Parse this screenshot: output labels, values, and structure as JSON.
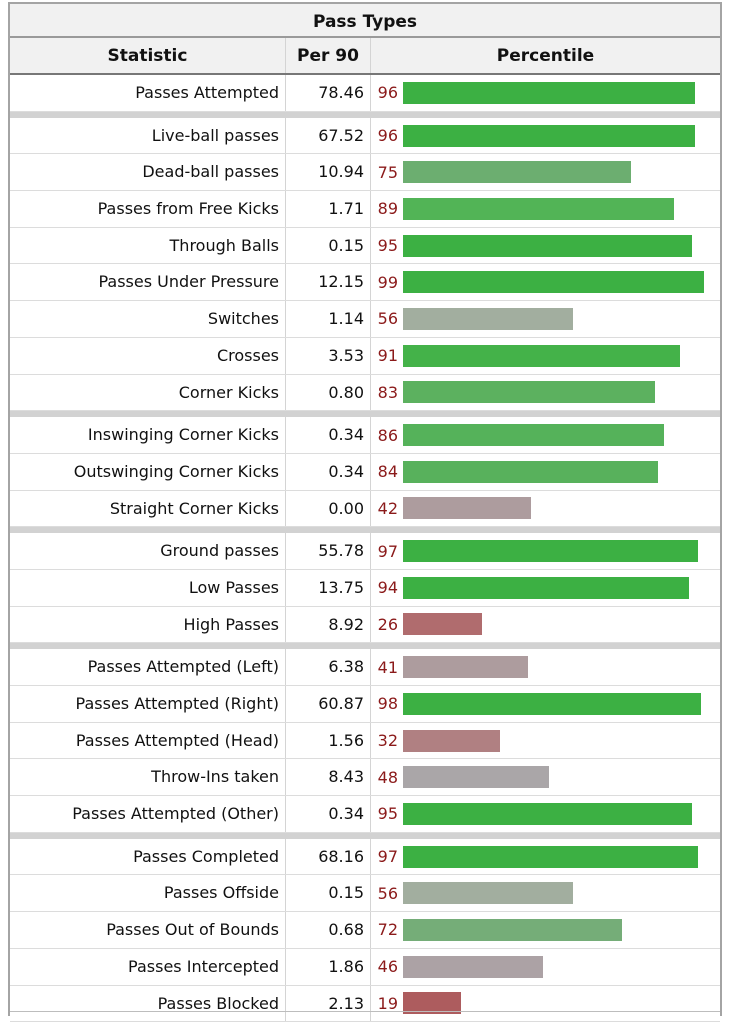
{
  "table": {
    "caption": "Pass Types",
    "headers": {
      "statistic": "Statistic",
      "per90": "Per 90",
      "percentile": "Percentile"
    },
    "rows": [
      {
        "label": "Passes Attempted",
        "per90": "78.46",
        "percentile": 96,
        "bar_color": "#3cb043",
        "group_start": false
      },
      {
        "label": "Live-ball passes",
        "per90": "67.52",
        "percentile": 96,
        "bar_color": "#3cb043",
        "group_start": true
      },
      {
        "label": "Dead-ball passes",
        "per90": "10.94",
        "percentile": 75,
        "bar_color": "#6cae70",
        "group_start": false
      },
      {
        "label": "Passes from Free Kicks",
        "per90": "1.71",
        "percentile": 89,
        "bar_color": "#52b456",
        "group_start": false
      },
      {
        "label": "Through Balls",
        "per90": "0.15",
        "percentile": 95,
        "bar_color": "#3cb043",
        "group_start": false
      },
      {
        "label": "Passes Under Pressure",
        "per90": "12.15",
        "percentile": 99,
        "bar_color": "#3cb043",
        "group_start": false
      },
      {
        "label": "Switches",
        "per90": "1.14",
        "percentile": 56,
        "bar_color": "#a2ae9f",
        "group_start": false
      },
      {
        "label": "Crosses",
        "per90": "3.53",
        "percentile": 91,
        "bar_color": "#44b249",
        "group_start": false
      },
      {
        "label": "Corner Kicks",
        "per90": "0.80",
        "percentile": 83,
        "bar_color": "#5cb15f",
        "group_start": false
      },
      {
        "label": "Inswinging Corner Kicks",
        "per90": "0.34",
        "percentile": 86,
        "bar_color": "#55b25a",
        "group_start": true
      },
      {
        "label": "Outswinging Corner Kicks",
        "per90": "0.34",
        "percentile": 84,
        "bar_color": "#58b15c",
        "group_start": false
      },
      {
        "label": "Straight Corner Kicks",
        "per90": "0.00",
        "percentile": 42,
        "bar_color": "#ad9c9e",
        "group_start": false
      },
      {
        "label": "Ground passes",
        "per90": "55.78",
        "percentile": 97,
        "bar_color": "#3cb043",
        "group_start": true
      },
      {
        "label": "Low Passes",
        "per90": "13.75",
        "percentile": 94,
        "bar_color": "#3cb043",
        "group_start": false
      },
      {
        "label": "High Passes",
        "per90": "8.92",
        "percentile": 26,
        "bar_color": "#b06c6e",
        "group_start": false
      },
      {
        "label": "Passes Attempted (Left)",
        "per90": "6.38",
        "percentile": 41,
        "bar_color": "#ad9c9e",
        "group_start": true
      },
      {
        "label": "Passes Attempted (Right)",
        "per90": "60.87",
        "percentile": 98,
        "bar_color": "#3cb043",
        "group_start": false
      },
      {
        "label": "Passes Attempted (Head)",
        "per90": "1.56",
        "percentile": 32,
        "bar_color": "#b08082",
        "group_start": false
      },
      {
        "label": "Throw-Ins taken",
        "per90": "8.43",
        "percentile": 48,
        "bar_color": "#aaa6a8",
        "group_start": false
      },
      {
        "label": "Passes Attempted (Other)",
        "per90": "0.34",
        "percentile": 95,
        "bar_color": "#3cb043",
        "group_start": false
      },
      {
        "label": "Passes Completed",
        "per90": "68.16",
        "percentile": 97,
        "bar_color": "#3cb043",
        "group_start": true
      },
      {
        "label": "Passes Offside",
        "per90": "0.15",
        "percentile": 56,
        "bar_color": "#a2ae9f",
        "group_start": false
      },
      {
        "label": "Passes Out of Bounds",
        "per90": "0.68",
        "percentile": 72,
        "bar_color": "#75ad78",
        "group_start": false
      },
      {
        "label": "Passes Intercepted",
        "per90": "1.86",
        "percentile": 46,
        "bar_color": "#aca2a5",
        "group_start": false
      },
      {
        "label": "Passes Blocked",
        "per90": "2.13",
        "percentile": 19,
        "bar_color": "#ad5c5e",
        "group_start": false
      }
    ]
  }
}
